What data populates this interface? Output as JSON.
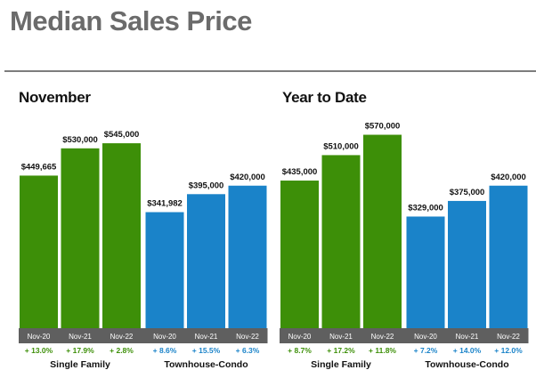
{
  "page": {
    "title": "Median Sales Price"
  },
  "colors": {
    "single_family": "#3d8f08",
    "townhouse_condo": "#1a83c9",
    "axis_band": "#5f5f5f"
  },
  "chart_data": [
    {
      "type": "bar",
      "title": "November",
      "groups": [
        {
          "name": "Single Family",
          "color": "#3d8f08",
          "categories": [
            "Nov-20",
            "Nov-21",
            "Nov-22"
          ],
          "values": [
            449665,
            530000,
            545000
          ],
          "value_labels": [
            "$449,665",
            "$530,000",
            "$545,000"
          ],
          "changes": [
            "+ 13.0%",
            "+ 17.9%",
            "+ 2.8%"
          ]
        },
        {
          "name": "Townhouse-Condo",
          "color": "#1a83c9",
          "categories": [
            "Nov-20",
            "Nov-21",
            "Nov-22"
          ],
          "values": [
            341982,
            395000,
            420000
          ],
          "value_labels": [
            "$341,982",
            "$395,000",
            "$420,000"
          ],
          "changes": [
            "+ 8.6%",
            "+ 15.5%",
            "+ 6.3%"
          ]
        }
      ]
    },
    {
      "type": "bar",
      "title": "Year to Date",
      "groups": [
        {
          "name": "Single Family",
          "color": "#3d8f08",
          "categories": [
            "Nov-20",
            "Nov-21",
            "Nov-22"
          ],
          "values": [
            435000,
            510000,
            570000
          ],
          "value_labels": [
            "$435,000",
            "$510,000",
            "$570,000"
          ],
          "changes": [
            "+ 8.7%",
            "+ 17.2%",
            "+ 11.8%"
          ]
        },
        {
          "name": "Townhouse-Condo",
          "color": "#1a83c9",
          "categories": [
            "Nov-20",
            "Nov-21",
            "Nov-22"
          ],
          "values": [
            329000,
            375000,
            420000
          ],
          "value_labels": [
            "$329,000",
            "$375,000",
            "$420,000"
          ],
          "changes": [
            "+ 7.2%",
            "+ 14.0%",
            "+ 12.0%"
          ]
        }
      ]
    }
  ]
}
